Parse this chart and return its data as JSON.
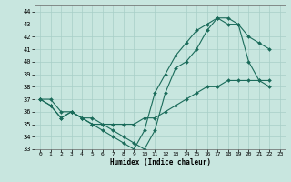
{
  "title": "",
  "xlabel": "Humidex (Indice chaleur)",
  "ylabel": "",
  "xlim": [
    -0.5,
    23.5
  ],
  "ylim": [
    33,
    44.5
  ],
  "yticks": [
    33,
    34,
    35,
    36,
    37,
    38,
    39,
    40,
    41,
    42,
    43,
    44
  ],
  "xticks": [
    0,
    1,
    2,
    3,
    4,
    5,
    6,
    7,
    8,
    9,
    10,
    11,
    12,
    13,
    14,
    15,
    16,
    17,
    18,
    19,
    20,
    21,
    22,
    23
  ],
  "background_color": "#c8e6df",
  "grid_color": "#a8cec8",
  "line_color": "#1a6b5a",
  "series": [
    {
      "x": [
        0,
        1,
        2,
        3,
        4,
        5,
        6,
        7,
        8,
        9,
        10,
        11,
        12,
        13,
        14,
        15,
        16,
        17,
        18,
        19,
        20,
        21,
        22
      ],
      "y": [
        37,
        36.5,
        35.5,
        36,
        35.5,
        35.5,
        35,
        34.5,
        34,
        33.5,
        33,
        34.5,
        37.5,
        39.5,
        40,
        41,
        42.5,
        43.5,
        43.5,
        43,
        40,
        38.5,
        38.0
      ]
    },
    {
      "x": [
        0,
        1,
        2,
        3,
        4,
        5,
        6,
        7,
        8,
        9,
        10,
        11,
        12,
        13,
        14,
        15,
        16,
        17,
        18,
        19,
        20,
        21,
        22
      ],
      "y": [
        37,
        36.5,
        35.5,
        36,
        35.5,
        35,
        34.5,
        34,
        33.5,
        33,
        34.5,
        37.5,
        39,
        40.5,
        41.5,
        42.5,
        43,
        43.5,
        43,
        43,
        42,
        41.5,
        41.0
      ]
    },
    {
      "x": [
        0,
        1,
        2,
        3,
        4,
        5,
        6,
        7,
        8,
        9,
        10,
        11,
        12,
        13,
        14,
        15,
        16,
        17,
        18,
        19,
        20,
        21,
        22
      ],
      "y": [
        37,
        37,
        36,
        36,
        35.5,
        35,
        35,
        35,
        35,
        35,
        35.5,
        35.5,
        36,
        36.5,
        37,
        37.5,
        38,
        38,
        38.5,
        38.5,
        38.5,
        38.5,
        38.5
      ]
    }
  ]
}
